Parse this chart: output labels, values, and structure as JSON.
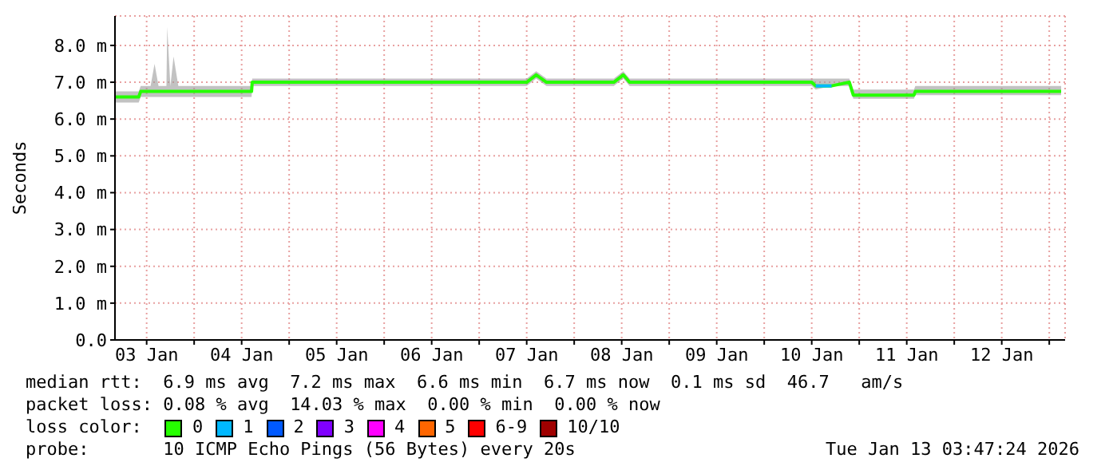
{
  "chart_data": {
    "type": "line",
    "ylabel": "Seconds",
    "legend_title": "loss color:",
    "legend": "bottom",
    "grid": true,
    "marker": "none",
    "line_style": "solid",
    "xlim": [
      "2026-01-03T04:00",
      "2026-01-13T04:00"
    ],
    "xticks": [
      {
        "value": "2026-01-03T12:00",
        "label": "03 Jan"
      },
      {
        "value": "2026-01-04T00:00",
        "label": null
      },
      {
        "value": "2026-01-04T12:00",
        "label": "04 Jan"
      },
      {
        "value": "2026-01-05T00:00",
        "label": null
      },
      {
        "value": "2026-01-05T12:00",
        "label": "05 Jan"
      },
      {
        "value": "2026-01-06T00:00",
        "label": null
      },
      {
        "value": "2026-01-06T12:00",
        "label": "06 Jan"
      },
      {
        "value": "2026-01-07T00:00",
        "label": null
      },
      {
        "value": "2026-01-07T12:00",
        "label": "07 Jan"
      },
      {
        "value": "2026-01-08T00:00",
        "label": null
      },
      {
        "value": "2026-01-08T12:00",
        "label": "08 Jan"
      },
      {
        "value": "2026-01-09T00:00",
        "label": null
      },
      {
        "value": "2026-01-09T12:00",
        "label": "09 Jan"
      },
      {
        "value": "2026-01-10T00:00",
        "label": null
      },
      {
        "value": "2026-01-10T12:00",
        "label": "10 Jan"
      },
      {
        "value": "2026-01-11T00:00",
        "label": null
      },
      {
        "value": "2026-01-11T12:00",
        "label": "11 Jan"
      },
      {
        "value": "2026-01-12T00:00",
        "label": null
      },
      {
        "value": "2026-01-12T12:00",
        "label": "12 Jan"
      },
      {
        "value": "2026-01-13T00:00",
        "label": null
      }
    ],
    "ylim": [
      0,
      8.8
    ],
    "yticks": [
      {
        "value": 0,
        "label": "0.0"
      },
      {
        "value": 1,
        "label": "1.0 m"
      },
      {
        "value": 2,
        "label": "2.0 m"
      },
      {
        "value": 3,
        "label": "3.0 m"
      },
      {
        "value": 4,
        "label": "4.0 m"
      },
      {
        "value": 5,
        "label": "5.0 m"
      },
      {
        "value": 6,
        "label": "6.0 m"
      },
      {
        "value": 7,
        "label": "7.0 m"
      },
      {
        "value": 8,
        "label": "8.0 m"
      }
    ],
    "series": [
      {
        "name": "0",
        "color": "#26ff00",
        "x": [
          "2026-01-03T04:00",
          "2026-01-03T10:00",
          "2026-01-03T10:30",
          "2026-01-03T13:00",
          "2026-01-03T14:00",
          "2026-01-03T15:00",
          "2026-01-03T17:00",
          "2026-01-03T17:12",
          "2026-01-03T18:00",
          "2026-01-03T18:48",
          "2026-01-03T20:00",
          "2026-01-04T12:00",
          "2026-01-04T14:30",
          "2026-01-04T14:40",
          "2026-01-05T12:00",
          "2026-01-06T12:00",
          "2026-01-07T12:00",
          "2026-01-07T14:24",
          "2026-01-07T17:00",
          "2026-01-08T10:00",
          "2026-01-08T12:24",
          "2026-01-08T14:00",
          "2026-01-09T12:00",
          "2026-01-10T12:00",
          "2026-01-10T13:00",
          "2026-01-10T17:00",
          "2026-01-10T21:30",
          "2026-01-10T22:30",
          "2026-01-11T13:50",
          "2026-01-11T14:10",
          "2026-01-12T12:00",
          "2026-01-13T03:00"
        ],
        "values": [
          6.6,
          6.6,
          6.75,
          6.75,
          6.75,
          6.75,
          6.75,
          6.75,
          6.75,
          6.75,
          6.75,
          6.75,
          6.75,
          7.0,
          7.0,
          7.0,
          7.0,
          7.2,
          7.0,
          7.0,
          7.2,
          7.0,
          7.0,
          7.0,
          6.9,
          6.9,
          7.0,
          6.65,
          6.65,
          6.75,
          6.75,
          6.75
        ],
        "lower": [
          6.45,
          6.45,
          6.6,
          6.6,
          6.6,
          6.6,
          6.6,
          6.6,
          6.6,
          6.6,
          6.6,
          6.6,
          6.6,
          6.9,
          6.9,
          6.9,
          6.9,
          7.1,
          6.9,
          6.9,
          7.1,
          6.9,
          6.9,
          6.9,
          6.8,
          6.9,
          6.9,
          6.55,
          6.55,
          6.65,
          6.65,
          6.65
        ],
        "upper": [
          6.75,
          6.75,
          6.9,
          6.9,
          7.5,
          6.9,
          6.9,
          8.5,
          6.9,
          7.7,
          6.9,
          6.9,
          6.9,
          7.1,
          7.1,
          7.1,
          7.1,
          7.3,
          7.1,
          7.1,
          7.3,
          7.1,
          7.1,
          7.1,
          7.1,
          7.1,
          7.1,
          6.8,
          6.8,
          6.9,
          6.9,
          6.9
        ]
      },
      {
        "name": "1",
        "color": "#00b8ff",
        "x": [
          "2026-01-10T13:00",
          "2026-01-10T17:00"
        ],
        "values": [
          6.9,
          6.9
        ]
      },
      {
        "name": "2",
        "color": "#0059ff"
      },
      {
        "name": "3",
        "color": "#8000ff"
      },
      {
        "name": "4",
        "color": "#ff00ff"
      },
      {
        "name": "5",
        "color": "#ff6600"
      },
      {
        "name": "6-9",
        "color": "#ff0000"
      },
      {
        "name": "10/10",
        "color": "#a00000"
      }
    ],
    "annotations": [
      "median rtt:  6.9 ms avg  7.2 ms max  6.6 ms min  6.7 ms now  0.1 ms sd  46.7   am/s",
      "packet loss: 0.08 % avg  14.03 % max  0.00 % min  0.00 % now",
      "probe:       10 ICMP Echo Pings (56 Bytes) every 20s",
      "Tue Jan 13 03:47:24 2026"
    ]
  }
}
